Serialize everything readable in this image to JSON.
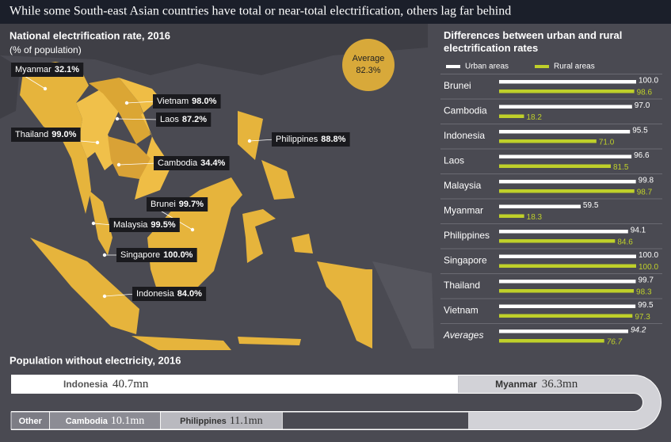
{
  "header": {
    "title": "While some South-east Asian countries have total or near-total electrification, others lag far behind"
  },
  "map": {
    "title": "National electrification rate, 2016",
    "unit": "(% of population)",
    "average": {
      "label": "Average",
      "value": "82.3%"
    },
    "countries": [
      {
        "name": "Myanmar",
        "rate": "32.1%"
      },
      {
        "name": "Vietnam",
        "rate": "98.0%"
      },
      {
        "name": "Laos",
        "rate": "87.2%"
      },
      {
        "name": "Thailand",
        "rate": "99.0%"
      },
      {
        "name": "Philippines",
        "rate": "88.8%"
      },
      {
        "name": "Cambodia",
        "rate": "34.4%"
      },
      {
        "name": "Brunei",
        "rate": "99.7%"
      },
      {
        "name": "Malaysia",
        "rate": "99.5%"
      },
      {
        "name": "Singapore",
        "rate": "100.0%"
      },
      {
        "name": "Indonesia",
        "rate": "84.0%"
      }
    ]
  },
  "chart_data": [
    {
      "type": "bar",
      "orientation": "horizontal",
      "title": "Differences between urban and rural electrification rates",
      "categories": [
        "Brunei",
        "Cambodia",
        "Indonesia",
        "Laos",
        "Malaysia",
        "Myanmar",
        "Philippines",
        "Singapore",
        "Thailand",
        "Vietnam",
        "Averages"
      ],
      "series": [
        {
          "name": "Urban areas",
          "color": "#ffffff",
          "values": [
            100,
            97,
            95.5,
            96.6,
            99.8,
            59.5,
            94.1,
            100,
            99.7,
            99.5,
            94.2
          ],
          "value_labels": [
            "100.0",
            "97.0",
            "95.5",
            "96.6",
            "99.8",
            "59.5",
            "94.1",
            "100.0",
            "99.7",
            "99.5",
            "94.2"
          ]
        },
        {
          "name": "Rural areas",
          "color": "#bfd02a",
          "values": [
            98.6,
            18.2,
            71,
            81.5,
            98.7,
            18.3,
            84.6,
            100,
            98.3,
            97.3,
            76.7
          ],
          "value_labels": [
            "98.6",
            "18.2",
            "71.0",
            "81.5",
            "98.7",
            "18.3",
            "84.6",
            "100.0",
            "98.3",
            "97.3",
            "76.7"
          ]
        }
      ],
      "xlim": [
        0,
        100
      ]
    },
    {
      "type": "stacked-bar",
      "title": "Population without electricity, 2016",
      "categories": [
        "Indonesia",
        "Myanmar",
        "Cambodia",
        "Philippines",
        "Other"
      ],
      "values": [
        40.7,
        36.3,
        10.1,
        11.1,
        3.5
      ],
      "value_labels": [
        "40.7mn",
        "36.3mn",
        "10.1mn",
        "11.1mn",
        null
      ],
      "colors": [
        "#ffffff",
        "#d2d2d7",
        "#8c8c94",
        "#b9b9bf",
        "#7c7c84"
      ]
    }
  ]
}
